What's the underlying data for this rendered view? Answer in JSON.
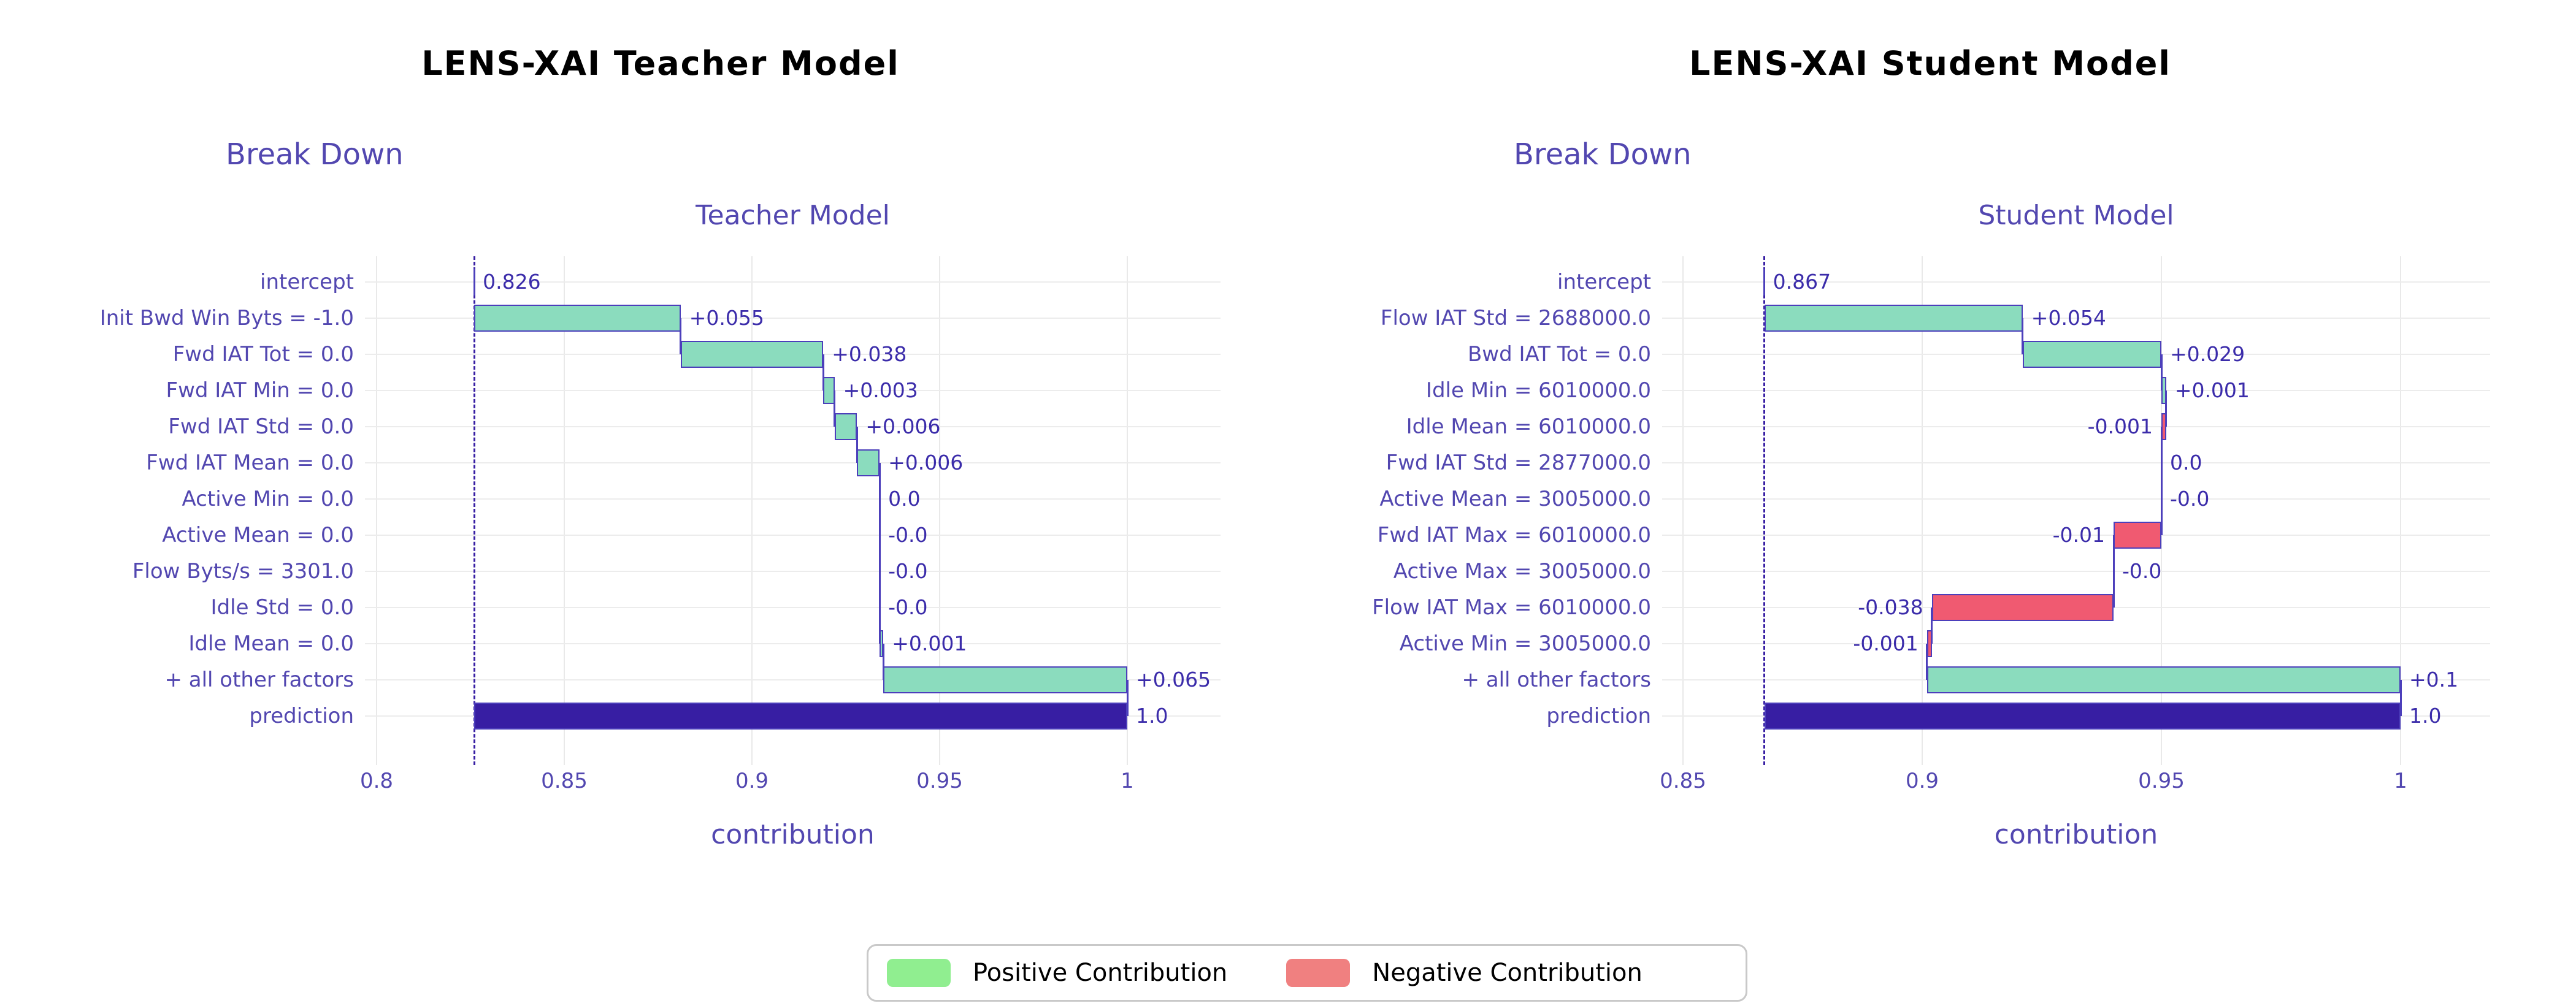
{
  "legend": {
    "position": "bottom-center",
    "items": [
      {
        "label": "Positive Contribution",
        "color": "#90ee90"
      },
      {
        "label": "Negative Contribution",
        "color": "#f08080"
      }
    ]
  },
  "colors": {
    "positive_bar": "#8bdcbe",
    "negative_bar": "#f05a71",
    "prediction_bar": "#371ea3",
    "bar_border": "#4c3fbb",
    "dashed_intercept_line": "#371ea3",
    "annotation_text": "#3b2caa",
    "axis_text": "#5247b0",
    "gridline": "#e9e9e9",
    "panel_title_text": "#000000"
  },
  "chart_data": [
    {
      "type": "bar",
      "variant": "breakdown-waterfall",
      "id": "teacher",
      "panel_title": "LENS-XAI Teacher Model",
      "subtitle": "Break Down",
      "title": "Teacher Model",
      "xlabel": "contribution",
      "x_ticks": [
        "0.8",
        "0.85",
        "0.9",
        "0.95",
        "1"
      ],
      "x_tick_values": [
        0.8,
        0.85,
        0.9,
        0.95,
        1.0
      ],
      "axis_range": [
        0.797,
        1.025
      ],
      "grid": true,
      "intercept": 0.826,
      "prediction": 1.0,
      "rows": [
        {
          "label": "intercept",
          "display": "0.826",
          "start": 0.826,
          "end": 0.826,
          "kind": "intercept",
          "side": "right"
        },
        {
          "label": "Init Bwd Win Byts = -1.0",
          "display": "+0.055",
          "start": 0.826,
          "end": 0.881,
          "kind": "positive",
          "side": "right"
        },
        {
          "label": "Fwd IAT Tot = 0.0",
          "display": "+0.038",
          "start": 0.881,
          "end": 0.919,
          "kind": "positive",
          "side": "right"
        },
        {
          "label": "Fwd IAT Min = 0.0",
          "display": "+0.003",
          "start": 0.919,
          "end": 0.922,
          "kind": "positive",
          "side": "right"
        },
        {
          "label": "Fwd IAT Std = 0.0",
          "display": "+0.006",
          "start": 0.922,
          "end": 0.928,
          "kind": "positive",
          "side": "right"
        },
        {
          "label": "Fwd IAT Mean = 0.0",
          "display": "+0.006",
          "start": 0.928,
          "end": 0.934,
          "kind": "positive",
          "side": "right"
        },
        {
          "label": "Active Min = 0.0",
          "display": "0.0",
          "start": 0.934,
          "end": 0.934,
          "kind": "zero",
          "side": "right"
        },
        {
          "label": "Active Mean = 0.0",
          "display": "-0.0",
          "start": 0.934,
          "end": 0.934,
          "kind": "zero",
          "side": "right"
        },
        {
          "label": "Flow Byts/s = 3301.0",
          "display": "-0.0",
          "start": 0.934,
          "end": 0.934,
          "kind": "zero",
          "side": "right"
        },
        {
          "label": "Idle Std = 0.0",
          "display": "-0.0",
          "start": 0.934,
          "end": 0.934,
          "kind": "zero",
          "side": "right"
        },
        {
          "label": "Idle Mean = 0.0",
          "display": "+0.001",
          "start": 0.934,
          "end": 0.935,
          "kind": "positive",
          "side": "right"
        },
        {
          "label": "+ all other factors",
          "display": "+0.065",
          "start": 0.935,
          "end": 1.0,
          "kind": "positive",
          "side": "right"
        },
        {
          "label": "prediction",
          "display": "1.0",
          "start": 0.826,
          "end": 1.0,
          "kind": "prediction",
          "side": "right"
        }
      ]
    },
    {
      "type": "bar",
      "variant": "breakdown-waterfall",
      "id": "student",
      "panel_title": "LENS-XAI Student Model",
      "subtitle": "Break Down",
      "title": "Student Model",
      "xlabel": "contribution",
      "x_ticks": [
        "0.85",
        "0.9",
        "0.95",
        "1"
      ],
      "x_tick_values": [
        0.85,
        0.9,
        0.95,
        1.0
      ],
      "axis_range": [
        0.845,
        1.02
      ],
      "grid": true,
      "intercept": 0.867,
      "prediction": 1.0,
      "rows": [
        {
          "label": "intercept",
          "display": "0.867",
          "start": 0.867,
          "end": 0.867,
          "kind": "intercept",
          "side": "right"
        },
        {
          "label": "Flow IAT Std = 2688000.0",
          "display": "+0.054",
          "start": 0.867,
          "end": 0.921,
          "kind": "positive",
          "side": "right"
        },
        {
          "label": "Bwd IAT Tot = 0.0",
          "display": "+0.029",
          "start": 0.921,
          "end": 0.95,
          "kind": "positive",
          "side": "right"
        },
        {
          "label": "Idle Min = 6010000.0",
          "display": "+0.001",
          "start": 0.95,
          "end": 0.951,
          "kind": "positive",
          "side": "right"
        },
        {
          "label": "Idle Mean = 6010000.0",
          "display": "-0.001",
          "start": 0.951,
          "end": 0.95,
          "kind": "negative",
          "side": "left"
        },
        {
          "label": "Fwd IAT Std = 2877000.0",
          "display": "0.0",
          "start": 0.95,
          "end": 0.95,
          "kind": "zero",
          "side": "right"
        },
        {
          "label": "Active Mean = 3005000.0",
          "display": "-0.0",
          "start": 0.95,
          "end": 0.95,
          "kind": "zero",
          "side": "right"
        },
        {
          "label": "Fwd IAT Max = 6010000.0",
          "display": "-0.01",
          "start": 0.95,
          "end": 0.94,
          "kind": "negative",
          "side": "left"
        },
        {
          "label": "Active Max = 3005000.0",
          "display": "-0.0",
          "start": 0.94,
          "end": 0.94,
          "kind": "zero",
          "side": "right"
        },
        {
          "label": "Flow IAT Max = 6010000.0",
          "display": "-0.038",
          "start": 0.94,
          "end": 0.902,
          "kind": "negative",
          "side": "left"
        },
        {
          "label": "Active Min = 3005000.0",
          "display": "-0.001",
          "start": 0.902,
          "end": 0.901,
          "kind": "negative",
          "side": "left"
        },
        {
          "label": "+ all other factors",
          "display": "+0.1",
          "start": 0.901,
          "end": 1.0,
          "kind": "positive",
          "side": "right"
        },
        {
          "label": "prediction",
          "display": "1.0",
          "start": 0.867,
          "end": 1.0,
          "kind": "prediction",
          "side": "right"
        }
      ]
    }
  ]
}
